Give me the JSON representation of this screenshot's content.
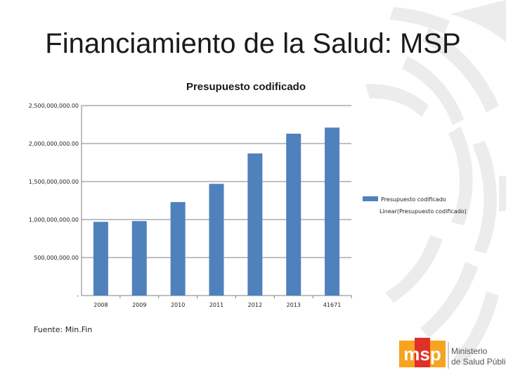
{
  "slide": {
    "title": "Financiamiento de la Salud: MSP"
  },
  "chart_data": {
    "type": "bar",
    "title": "Presupuesto codificado",
    "categories": [
      "2008",
      "2009",
      "2010",
      "2011",
      "2012",
      "2013",
      "41671"
    ],
    "series": [
      {
        "name": "Presupuesto codificado",
        "values": [
          970000000,
          980000000,
          1230000000,
          1470000000,
          1870000000,
          2130000000,
          2210000000
        ],
        "color": "#4f81bd"
      }
    ],
    "trendline": {
      "name": "Linear(Presupuesto codificado)"
    },
    "ylim": [
      0,
      2500000000
    ],
    "yticks": [
      0,
      500000000,
      1000000000,
      1500000000,
      2000000000,
      2500000000
    ],
    "ytick_labels": [
      "-",
      "500,000,000.00",
      "1,000,000,000.00",
      "1,500,000,000.00",
      "2,000,000,000.00",
      "2,500,000,000.00"
    ],
    "grid": true,
    "legend": "right"
  },
  "source": "Fuente: Min.Fin",
  "logo": {
    "mark": "msp",
    "line1": "Ministerio",
    "line2": "de Salud Públic"
  },
  "colors": {
    "bar": "#4f81bd",
    "gridline": "#808080",
    "logo_orange": "#f6a320",
    "logo_red": "#e0302a"
  }
}
